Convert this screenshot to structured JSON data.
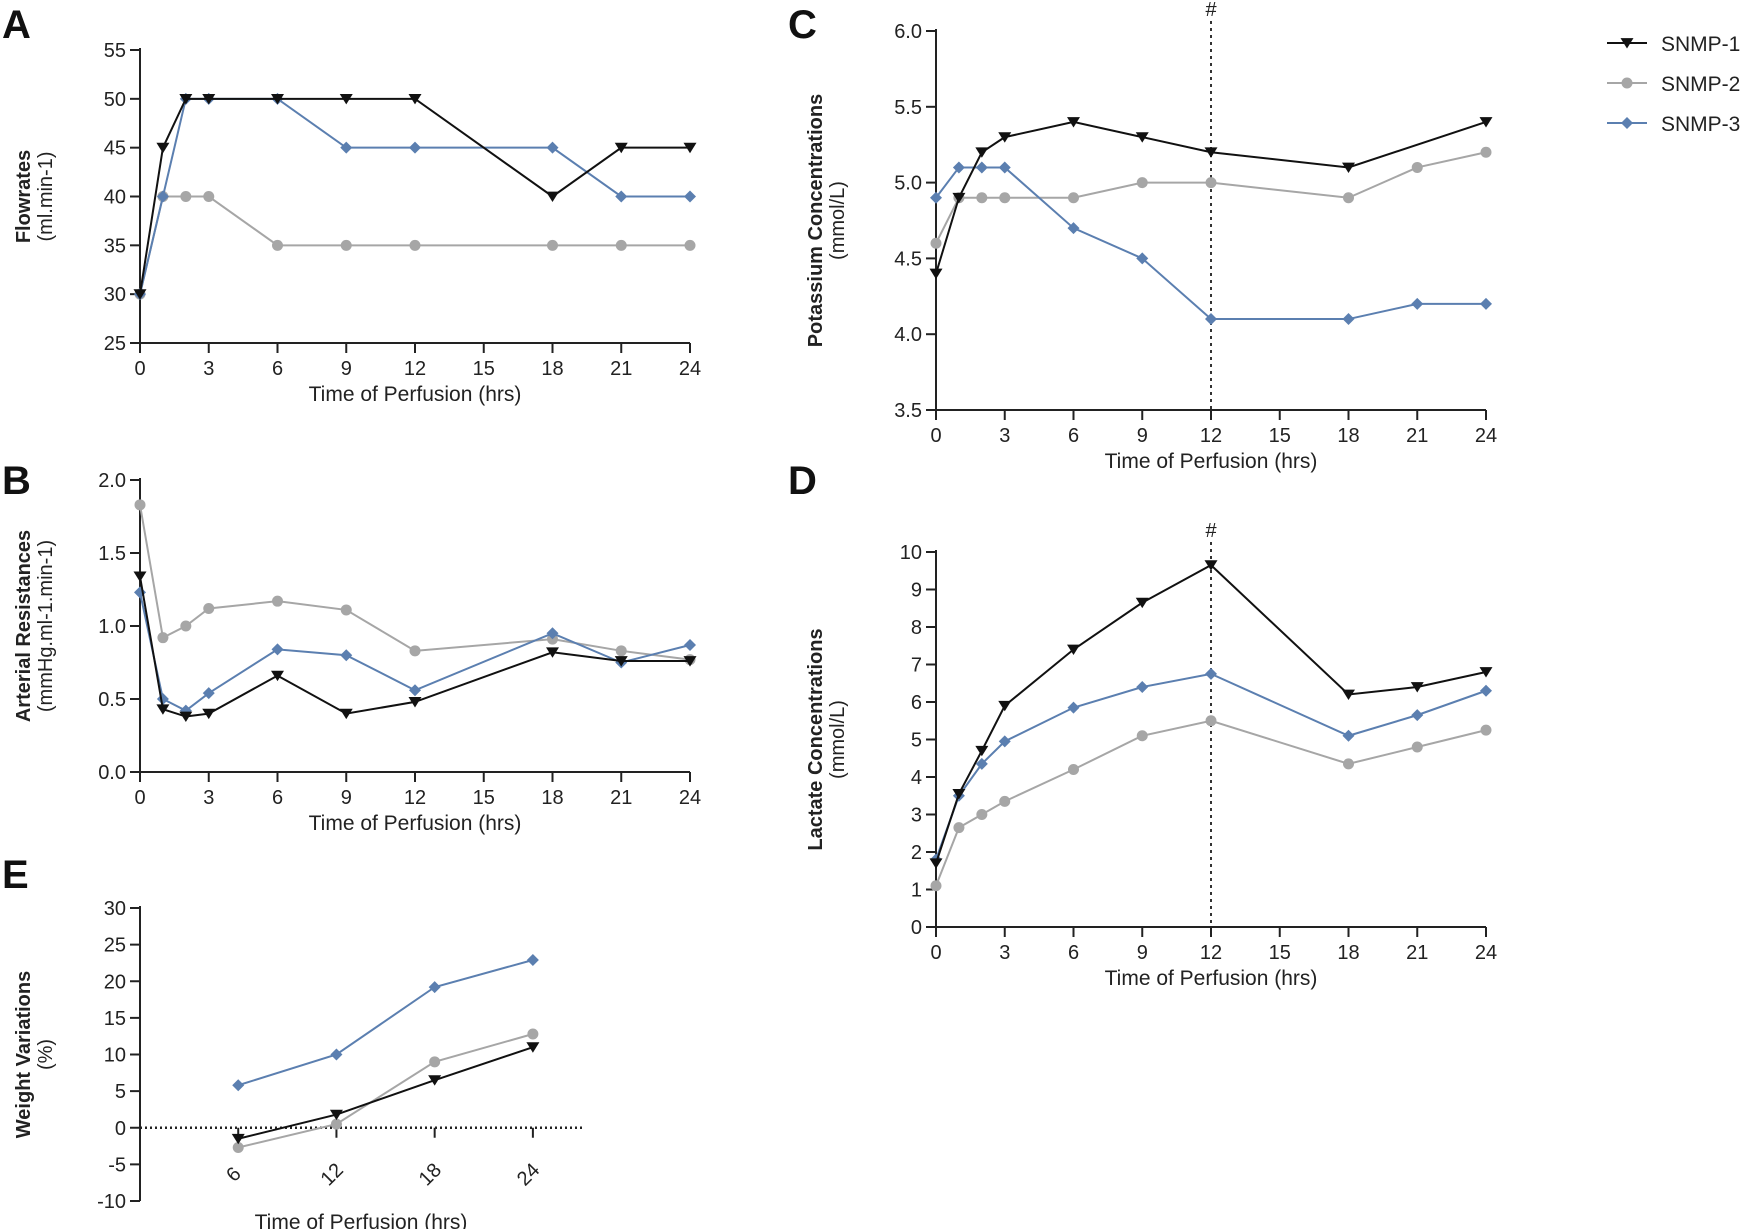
{
  "colors": {
    "snmp1": "#111111",
    "snmp2": "#a6a6a6",
    "snmp3": "#5b7fb0",
    "axis": "#222222"
  },
  "legend": [
    {
      "label": "SNMP-1",
      "marker": "triangle-down",
      "color": "#111111"
    },
    {
      "label": "SNMP-2",
      "marker": "circle",
      "color": "#a6a6a6"
    },
    {
      "label": "SNMP-3",
      "marker": "diamond",
      "color": "#5b7fb0"
    }
  ],
  "chart_data": [
    {
      "id": "A",
      "letter": "A",
      "type": "line",
      "ytitle": "Flowrates",
      "yunit": "(ml.min-1)",
      "xlabel": "Time of Perfusion (hrs)",
      "xlim": [
        0,
        24
      ],
      "xticks": [
        0,
        3,
        6,
        9,
        12,
        15,
        18,
        21,
        24
      ],
      "ylim": [
        25,
        55
      ],
      "yticks": [
        25,
        30,
        35,
        40,
        45,
        50,
        55
      ],
      "series": [
        {
          "name": "SNMP-1",
          "x": [
            0,
            1,
            2,
            3,
            6,
            9,
            12,
            18,
            21,
            24
          ],
          "y": [
            30,
            45,
            50,
            50,
            50,
            50,
            50,
            40,
            45,
            45
          ]
        },
        {
          "name": "SNMP-2",
          "x": [
            0,
            1,
            2,
            3,
            6,
            9,
            12,
            18,
            21,
            24
          ],
          "y": [
            30,
            40,
            40,
            40,
            35,
            35,
            35,
            35,
            35,
            35
          ]
        },
        {
          "name": "SNMP-3",
          "x": [
            0,
            1,
            2,
            3,
            6,
            9,
            12,
            18,
            21,
            24
          ],
          "y": [
            30,
            40,
            50,
            50,
            50,
            45,
            45,
            45,
            40,
            40
          ]
        }
      ]
    },
    {
      "id": "B",
      "letter": "B",
      "type": "line",
      "ytitle": "Arterial Resistances",
      "yunit": "(mmHg.ml-1.min-1)",
      "xlabel": "Time of Perfusion (hrs)",
      "xlim": [
        0,
        24
      ],
      "xticks": [
        0,
        3,
        6,
        9,
        12,
        15,
        18,
        21,
        24
      ],
      "ylim": [
        0,
        2
      ],
      "yticks": [
        0.0,
        0.5,
        1.0,
        1.5,
        2.0
      ],
      "ydec": 1,
      "series": [
        {
          "name": "SNMP-1",
          "x": [
            0,
            1,
            2,
            3,
            6,
            9,
            12,
            18,
            21,
            24
          ],
          "y": [
            1.34,
            0.43,
            0.38,
            0.4,
            0.66,
            0.4,
            0.48,
            0.82,
            0.76,
            0.76
          ]
        },
        {
          "name": "SNMP-2",
          "x": [
            0,
            1,
            2,
            3,
            6,
            9,
            12,
            18,
            21,
            24
          ],
          "y": [
            1.83,
            0.92,
            1.0,
            1.12,
            1.17,
            1.11,
            0.83,
            0.91,
            0.83,
            0.77
          ]
        },
        {
          "name": "SNMP-3",
          "x": [
            0,
            1,
            2,
            3,
            6,
            9,
            12,
            18,
            21,
            24
          ],
          "y": [
            1.23,
            0.5,
            0.42,
            0.54,
            0.84,
            0.8,
            0.56,
            0.95,
            0.75,
            0.87
          ]
        }
      ]
    },
    {
      "id": "C",
      "letter": "C",
      "type": "line",
      "ytitle": "Potassium Concentrations",
      "yunit": "(mmol/L)",
      "xlabel": "Time of Perfusion (hrs)",
      "xlim": [
        0,
        24
      ],
      "xticks": [
        0,
        3,
        6,
        9,
        12,
        15,
        18,
        21,
        24
      ],
      "ylim": [
        3.5,
        6.0
      ],
      "yticks": [
        3.5,
        4.0,
        4.5,
        5.0,
        5.5,
        6.0
      ],
      "ydec": 1,
      "vline": {
        "x": 12,
        "label": "#"
      },
      "series": [
        {
          "name": "SNMP-1",
          "x": [
            0,
            1,
            2,
            3,
            6,
            9,
            12,
            18,
            24
          ],
          "y": [
            4.4,
            4.9,
            5.2,
            5.3,
            5.4,
            5.3,
            5.2,
            5.1,
            5.4
          ]
        },
        {
          "name": "SNMP-2",
          "x": [
            0,
            1,
            2,
            3,
            6,
            9,
            12,
            18,
            21,
            24
          ],
          "y": [
            4.6,
            4.9,
            4.9,
            4.9,
            4.9,
            5.0,
            5.0,
            4.9,
            5.1,
            5.2
          ]
        },
        {
          "name": "SNMP-3",
          "x": [
            0,
            1,
            2,
            3,
            6,
            9,
            12,
            18,
            21,
            24
          ],
          "y": [
            4.9,
            5.1,
            5.1,
            5.1,
            4.7,
            4.5,
            4.1,
            4.1,
            4.2,
            4.2
          ]
        }
      ]
    },
    {
      "id": "D",
      "letter": "D",
      "type": "line",
      "ytitle": "Lactate Concentrations",
      "yunit": "(mmol/L)",
      "xlabel": "Time of Perfusion (hrs)",
      "xlim": [
        0,
        24
      ],
      "xticks": [
        0,
        3,
        6,
        9,
        12,
        15,
        18,
        21,
        24
      ],
      "ylim": [
        0,
        10
      ],
      "yticks": [
        0,
        1,
        2,
        3,
        4,
        5,
        6,
        7,
        8,
        9,
        10
      ],
      "vline": {
        "x": 12,
        "label": "#"
      },
      "series": [
        {
          "name": "SNMP-1",
          "x": [
            0,
            1,
            2,
            3,
            6,
            9,
            12,
            18,
            21,
            24
          ],
          "y": [
            1.7,
            3.55,
            4.7,
            5.9,
            7.4,
            8.65,
            9.65,
            6.2,
            6.4,
            6.8
          ]
        },
        {
          "name": "SNMP-2",
          "x": [
            0,
            1,
            2,
            3,
            6,
            9,
            12,
            18,
            21,
            24
          ],
          "y": [
            1.1,
            2.65,
            3.0,
            3.35,
            4.2,
            5.1,
            5.5,
            4.35,
            4.8,
            5.25
          ]
        },
        {
          "name": "SNMP-3",
          "x": [
            0,
            1,
            2,
            3,
            6,
            9,
            12,
            18,
            21,
            24
          ],
          "y": [
            1.8,
            3.5,
            4.35,
            4.95,
            5.85,
            6.4,
            6.75,
            5.1,
            5.65,
            6.3
          ]
        }
      ]
    },
    {
      "id": "E",
      "letter": "E",
      "type": "line",
      "ytitle": "Weight Variations",
      "yunit": "(%)",
      "xlabel": "Time of Perfusion (hrs)",
      "xlim": [
        0,
        27
      ],
      "xticks": [
        6,
        12,
        18,
        24
      ],
      "xrotate": true,
      "ylim": [
        -10,
        30
      ],
      "yticks": [
        -10,
        -5,
        0,
        5,
        10,
        15,
        20,
        25,
        30
      ],
      "hline": {
        "y": 0
      },
      "series": [
        {
          "name": "SNMP-1",
          "x": [
            6,
            12,
            18,
            24
          ],
          "y": [
            -1.5,
            1.8,
            6.5,
            11.0
          ]
        },
        {
          "name": "SNMP-2",
          "x": [
            6,
            12,
            18,
            24
          ],
          "y": [
            -2.7,
            0.5,
            9.0,
            12.8
          ]
        },
        {
          "name": "SNMP-3",
          "x": [
            6,
            12,
            18,
            24
          ],
          "y": [
            5.8,
            10.0,
            19.2,
            22.9
          ]
        }
      ]
    }
  ]
}
